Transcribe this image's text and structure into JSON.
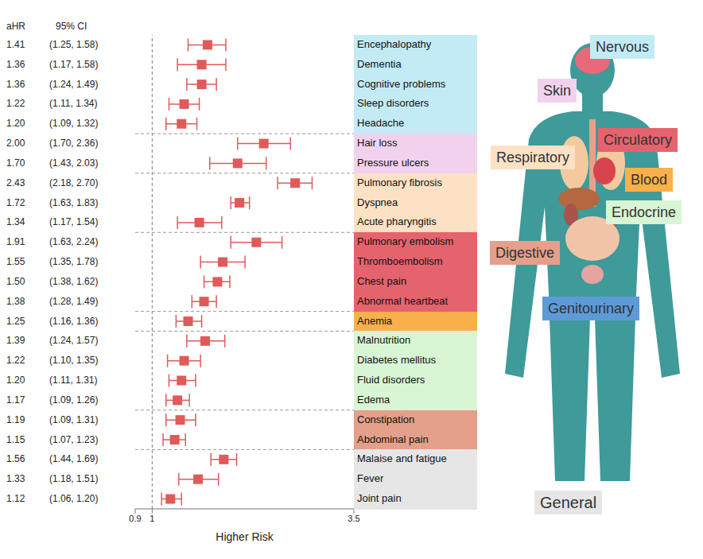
{
  "chart_data": {
    "type": "forest",
    "xlabel": "Higher Risk",
    "log": "x",
    "grid": false,
    "marker": "square",
    "color": "#e05a5a",
    "xlim": [
      0.9,
      3.5
    ],
    "xticks": [
      0.9,
      1,
      3.5
    ],
    "reference_line": 1,
    "column_headers": [
      "aHR",
      "95% CI"
    ],
    "categories": [
      "Encephalopathy",
      "Dementia",
      "Cognitive problems",
      "Sleep disorders",
      "Headache",
      "Hair loss",
      "Pressure ulcers",
      "Pulmonary fibrosis",
      "Dyspnea",
      "Acute pharyngitis",
      "Pulmonary embolism",
      "Thromboembolism",
      "Chest pain",
      "Abnormal heartbeat",
      "Anemia",
      "Malnutrition",
      "Diabetes mellitus",
      "Fluid disorders",
      "Edema",
      "Constipation",
      "Abdominal pain",
      "Malaise and fatigue",
      "Fever",
      "Joint pain"
    ],
    "values": [
      1.41,
      1.36,
      1.36,
      1.22,
      1.2,
      2.0,
      1.7,
      2.43,
      1.72,
      1.34,
      1.91,
      1.55,
      1.5,
      1.38,
      1.25,
      1.39,
      1.22,
      1.2,
      1.17,
      1.19,
      1.15,
      1.56,
      1.33,
      1.12
    ],
    "value_labels": [
      "1.41",
      "1.36",
      "1.36",
      "1.22",
      "1.20",
      "2.00",
      "1.70",
      "2.43",
      "1.72",
      "1.34",
      "1.91",
      "1.55",
      "1.50",
      "1.38",
      "1.25",
      "1.39",
      "1.22",
      "1.20",
      "1.17",
      "1.19",
      "1.15",
      "1.56",
      "1.33",
      "1.12"
    ],
    "ci_lower": [
      1.25,
      1.17,
      1.24,
      1.11,
      1.09,
      1.7,
      1.43,
      2.18,
      1.63,
      1.17,
      1.63,
      1.35,
      1.38,
      1.28,
      1.16,
      1.24,
      1.1,
      1.11,
      1.09,
      1.09,
      1.07,
      1.44,
      1.18,
      1.06
    ],
    "ci_upper": [
      1.58,
      1.58,
      1.49,
      1.34,
      1.32,
      2.36,
      2.03,
      2.7,
      1.83,
      1.54,
      2.24,
      1.78,
      1.62,
      1.49,
      1.36,
      1.57,
      1.35,
      1.31,
      1.26,
      1.31,
      1.23,
      1.69,
      1.51,
      1.2
    ],
    "ci_labels": [
      "(1.25, 1.58)",
      "(1.17, 1.58)",
      "(1.24, 1.49)",
      "(1.11, 1.34)",
      "(1.09, 1.32)",
      "(1.70, 2.36)",
      "(1.43, 2.03)",
      "(2.18, 2.70)",
      "(1.63, 1.83)",
      "(1.17, 1.54)",
      "(1.63, 2.24)",
      "(1.35, 1.78)",
      "(1.38, 1.62)",
      "(1.28, 1.49)",
      "(1.16, 1.36)",
      "(1.24, 1.57)",
      "(1.10, 1.35)",
      "(1.11, 1.31)",
      "(1.09, 1.26)",
      "(1.09, 1.31)",
      "(1.07, 1.23)",
      "(1.44, 1.69)",
      "(1.18, 1.51)",
      "(1.06, 1.20)"
    ],
    "category_system": [
      "Nervous",
      "Nervous",
      "Nervous",
      "Nervous",
      "Nervous",
      "Skin",
      "Skin",
      "Respiratory",
      "Respiratory",
      "Respiratory",
      "Circulatory",
      "Circulatory",
      "Circulatory",
      "Circulatory",
      "Blood",
      "Endocrine",
      "Endocrine",
      "Endocrine",
      "Endocrine",
      "Digestive",
      "Digestive",
      "General",
      "General",
      "General"
    ],
    "systems": [
      {
        "name": "Nervous",
        "color": "#c3ebf6"
      },
      {
        "name": "Skin",
        "color": "#f1d2ee"
      },
      {
        "name": "Respiratory",
        "color": "#fde1c4"
      },
      {
        "name": "Circulatory",
        "color": "#e5636d"
      },
      {
        "name": "Blood",
        "color": "#f7b04a"
      },
      {
        "name": "Endocrine",
        "color": "#d8f5d4"
      },
      {
        "name": "Digestive",
        "color": "#e4a08a"
      },
      {
        "name": "Genitourinary",
        "color": "#5d9bd8"
      },
      {
        "name": "General",
        "color": "#e6e6e6"
      }
    ]
  }
}
